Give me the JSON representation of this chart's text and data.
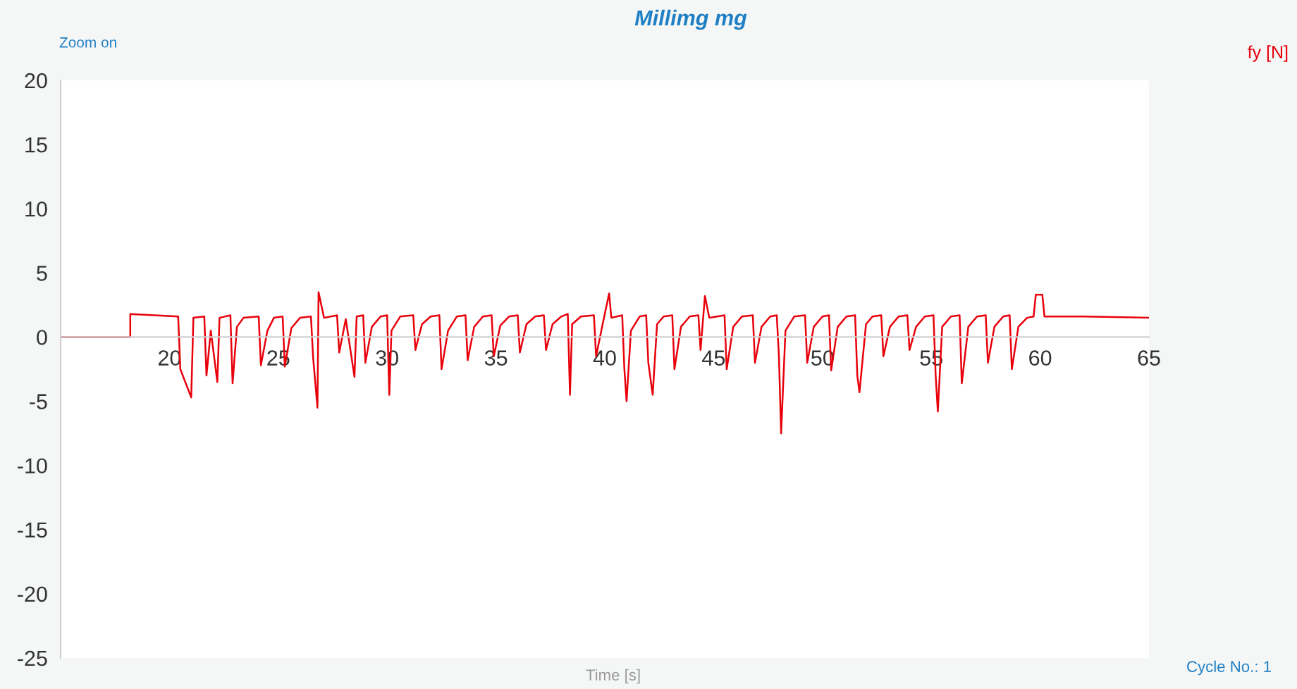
{
  "chart_data": {
    "type": "line",
    "title": "Millimg mg",
    "xlabel": "Time [s]",
    "annotations": [
      "Zoom on",
      "Cycle No.: 1"
    ],
    "xlim": [
      15,
      65
    ],
    "xticks": [
      {
        "value": 15,
        "label": null
      },
      20,
      25,
      30,
      35,
      40,
      45,
      50,
      55,
      60,
      65
    ],
    "ylim": [
      -25,
      20
    ],
    "yticks": [
      -25,
      -20,
      -15,
      -10,
      -5,
      0,
      5,
      10,
      15,
      20
    ],
    "grid": false,
    "legend": "top right",
    "series": [
      {
        "name": "fy [N]",
        "color": "#e8000b",
        "x": [
          15,
          18.2,
          18.2,
          20.4,
          20.5,
          21.0,
          21.1,
          21.6,
          21.7,
          21.9,
          22.2,
          22.3,
          22.8,
          22.9,
          23.1,
          23.4,
          24.1,
          24.2,
          24.5,
          24.8,
          25.2,
          25.3,
          25.6,
          26.0,
          26.5,
          26.6,
          26.8,
          26.85,
          27.1,
          27.7,
          27.8,
          28.1,
          28.5,
          28.6,
          28.9,
          29.0,
          29.3,
          29.7,
          30.0,
          30.1,
          30.2,
          30.6,
          31.2,
          31.3,
          31.6,
          32.0,
          32.4,
          32.5,
          32.8,
          33.2,
          33.6,
          33.7,
          34.0,
          34.4,
          34.8,
          34.9,
          35.2,
          35.6,
          36.0,
          36.1,
          36.4,
          36.8,
          37.2,
          37.3,
          37.6,
          38.0,
          38.3,
          38.4,
          38.5,
          38.9,
          39.5,
          39.6,
          39.9,
          40.2,
          40.3,
          40.8,
          40.9,
          41.0,
          41.2,
          41.6,
          41.9,
          42.0,
          42.2,
          42.4,
          42.7,
          43.1,
          43.2,
          43.5,
          43.9,
          44.3,
          44.4,
          44.6,
          44.8,
          45.5,
          45.6,
          45.9,
          46.3,
          46.8,
          46.9,
          47.2,
          47.6,
          47.9,
          48.0,
          48.1,
          48.3,
          48.7,
          49.2,
          49.3,
          49.6,
          50.0,
          50.3,
          50.4,
          50.7,
          51.1,
          51.5,
          51.6,
          51.7,
          52.0,
          52.3,
          52.7,
          52.8,
          53.1,
          53.5,
          53.9,
          54.0,
          54.3,
          54.7,
          55.1,
          55.2,
          55.3,
          55.5,
          55.9,
          56.3,
          56.4,
          56.7,
          57.1,
          57.5,
          57.6,
          57.9,
          58.3,
          58.6,
          58.7,
          59.0,
          59.4,
          59.7,
          59.8,
          60.1,
          60.2,
          62,
          65
        ],
        "values": [
          0,
          0,
          1.8,
          1.6,
          -2.5,
          -4.7,
          1.5,
          1.6,
          -3.0,
          0.5,
          -3.5,
          1.5,
          1.7,
          -3.6,
          0.8,
          1.5,
          1.6,
          -2.2,
          0.5,
          1.5,
          1.6,
          -2.3,
          0.7,
          1.5,
          1.6,
          -1.6,
          -5.5,
          3.5,
          1.5,
          1.7,
          -1.2,
          1.4,
          -3.1,
          1.6,
          1.7,
          -2.0,
          0.8,
          1.6,
          1.7,
          -4.5,
          0.5,
          1.6,
          1.7,
          -1.0,
          1.0,
          1.6,
          1.7,
          -2.5,
          0.5,
          1.6,
          1.7,
          -1.8,
          0.8,
          1.6,
          1.7,
          -1.5,
          0.9,
          1.6,
          1.7,
          -1.2,
          1.0,
          1.6,
          1.7,
          -1.0,
          1.0,
          1.6,
          1.8,
          -4.5,
          1.0,
          1.6,
          1.7,
          -1.5,
          1.0,
          3.4,
          1.5,
          1.7,
          -2.5,
          -5.0,
          0.5,
          1.6,
          1.7,
          -2.0,
          -4.5,
          1.0,
          1.6,
          1.7,
          -2.5,
          0.8,
          1.6,
          1.7,
          -1.0,
          3.2,
          1.5,
          1.7,
          -2.5,
          0.8,
          1.6,
          1.7,
          -2.0,
          0.8,
          1.6,
          1.7,
          -1.5,
          -7.5,
          0.5,
          1.6,
          1.7,
          -2.0,
          0.8,
          1.6,
          1.7,
          -2.6,
          0.8,
          1.6,
          1.7,
          -3.0,
          -4.3,
          1.0,
          1.6,
          1.7,
          -1.5,
          0.8,
          1.6,
          1.7,
          -1.0,
          0.8,
          1.6,
          1.7,
          -3.0,
          -5.8,
          0.8,
          1.6,
          1.7,
          -3.6,
          0.8,
          1.6,
          1.7,
          -2.0,
          0.8,
          1.6,
          1.7,
          -2.5,
          0.8,
          1.5,
          1.6,
          3.3,
          3.3,
          1.6,
          1.6,
          1.5
        ]
      }
    ]
  }
}
